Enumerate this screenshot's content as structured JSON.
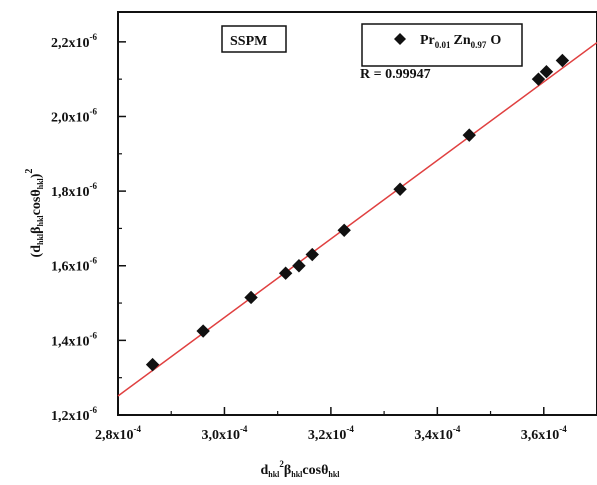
{
  "chart_data": {
    "type": "scatter",
    "xlabel": "d_hkl^2 β_hkl cosθ_hkl",
    "ylabel": "(d_hkl β_hkl cosθ_hkl)^2",
    "xlim": [
      0.00028,
      0.00037
    ],
    "ylim": [
      1.2e-06,
      2.28e-06
    ],
    "x_ticks": [
      0.00028,
      0.0003,
      0.00032,
      0.00034,
      0.00036
    ],
    "x_tick_labels": [
      "2,8x10",
      "3,0x10",
      "3,2x10",
      "3,4x10",
      "3,6x10"
    ],
    "x_tick_exp": "-4",
    "y_ticks": [
      1.2e-06,
      1.4e-06,
      1.6e-06,
      1.8e-06,
      2e-06,
      2.2e-06
    ],
    "y_tick_labels": [
      "1,2x10",
      "1,4x10",
      "1,6x10",
      "1,8x10",
      "2,0x10",
      "2,2x10"
    ],
    "y_tick_exp": "-6",
    "grid": false,
    "series": [
      {
        "name": "Pr0.01Zn0.97O",
        "marker": "diamond",
        "color": "#111111",
        "x": [
          0.0002865,
          0.000296,
          0.000305,
          0.0003115,
          0.000314,
          0.0003165,
          0.0003225,
          0.000333,
          0.000346,
          0.000359,
          0.0003605,
          0.0003635
        ],
        "y": [
          1.335e-06,
          1.425e-06,
          1.515e-06,
          1.58e-06,
          1.6e-06,
          1.63e-06,
          1.695e-06,
          1.805e-06,
          1.95e-06,
          2.1e-06,
          2.12e-06,
          2.15e-06
        ]
      }
    ],
    "fit": {
      "color": "#e04040",
      "x": [
        0.00028,
        0.00037
      ],
      "y": [
        1.251e-06,
        2.198e-06
      ]
    },
    "annotations": {
      "method_box": "SSPM",
      "legend_symbol_label": "Pr",
      "legend_sub1": "0.01",
      "legend_mid": "Zn",
      "legend_sub2": "0.97",
      "legend_end": "O",
      "r_value": "R = 0.99947"
    },
    "legend_position": "top-right"
  }
}
